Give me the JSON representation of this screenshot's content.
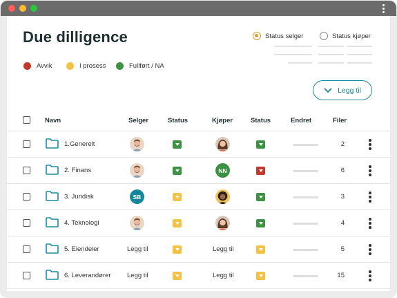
{
  "page": {
    "title": "Due dilligence"
  },
  "legend": [
    {
      "label": "Avvik",
      "color": "#c0392b"
    },
    {
      "label": "I prosess",
      "color": "#f5c248"
    },
    {
      "label": "Fullført / NA",
      "color": "#3d9142"
    }
  ],
  "filters": {
    "seller_status": {
      "label": "Status selger",
      "checked": true
    },
    "buyer_status": {
      "label": "Status kjøper",
      "checked": false
    }
  },
  "toolbar": {
    "add_label": "Legg til"
  },
  "table": {
    "headers": {
      "name": "Navn",
      "seller": "Selger",
      "seller_status": "Status",
      "buyer": "Kjøper",
      "buyer_status": "Status",
      "changed": "Endret",
      "files": "Filer"
    },
    "rows": [
      {
        "name": "1.Generelt",
        "seller": {
          "type": "photo",
          "who": "man"
        },
        "seller_status": "green",
        "buyer": {
          "type": "photo",
          "who": "woman"
        },
        "buyer_status": "green",
        "files": "2"
      },
      {
        "name": "2. Finans",
        "seller": {
          "type": "photo",
          "who": "man"
        },
        "seller_status": "green",
        "buyer": {
          "type": "initials",
          "text": "NN",
          "color": "#3d9142"
        },
        "buyer_status": "red",
        "files": "6"
      },
      {
        "name": "3. Juridisk",
        "seller": {
          "type": "initials",
          "text": "SB",
          "color": "#16879b"
        },
        "seller_status": "yellow",
        "buyer": {
          "type": "photo",
          "who": "curly"
        },
        "buyer_status": "green",
        "files": "3"
      },
      {
        "name": "4. Teknologi",
        "seller": {
          "type": "photo",
          "who": "man"
        },
        "seller_status": "yellow",
        "buyer": {
          "type": "photo",
          "who": "woman"
        },
        "buyer_status": "green",
        "files": "4"
      },
      {
        "name": "5. Eiendeler",
        "seller": {
          "type": "text",
          "text": "Legg til"
        },
        "seller_status": "yellow",
        "buyer": {
          "type": "text",
          "text": "Legg til"
        },
        "buyer_status": "yellow",
        "files": "5"
      },
      {
        "name": "6. Leverandører",
        "seller": {
          "type": "text",
          "text": "Legg til"
        },
        "seller_status": "yellow",
        "buyer": {
          "type": "text",
          "text": "Legg til"
        },
        "buyer_status": "yellow",
        "files": "15"
      }
    ]
  },
  "colors": {
    "green": "#3d9142",
    "yellow": "#f5c248",
    "red": "#c0392b",
    "accent": "#1f8aa0",
    "folder": "#1f8aa0"
  }
}
